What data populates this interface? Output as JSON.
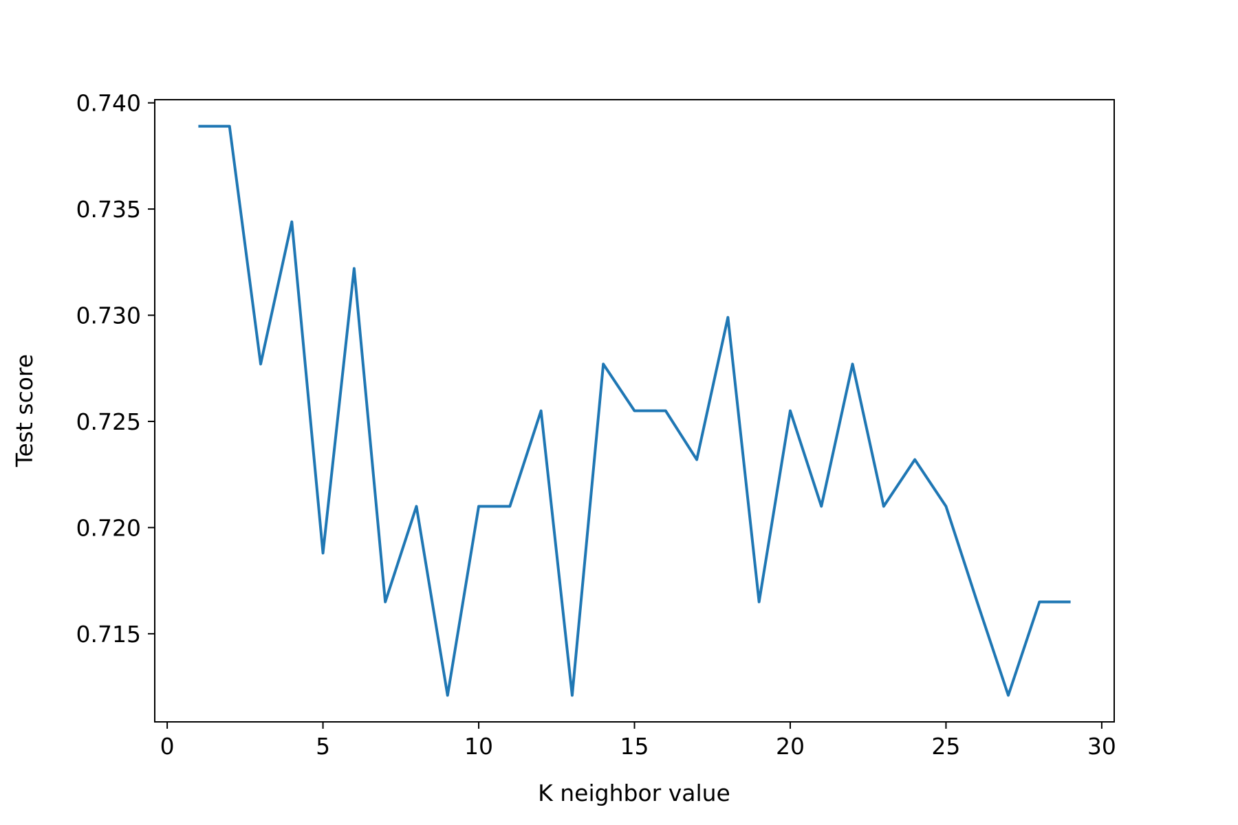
{
  "chart_data": {
    "type": "line",
    "title": "",
    "xlabel": "K neighbor value",
    "ylabel": "Test score",
    "xlim": [
      -0.4,
      30.4
    ],
    "ylim": [
      0.71085,
      0.74015
    ],
    "x_ticks": [
      0,
      5,
      10,
      15,
      20,
      25,
      30
    ],
    "x_tick_labels": [
      "0",
      "5",
      "10",
      "15",
      "20",
      "25",
      "30"
    ],
    "y_ticks": [
      0.715,
      0.72,
      0.725,
      0.73,
      0.735,
      0.74
    ],
    "y_tick_labels": [
      "0.715",
      "0.720",
      "0.725",
      "0.730",
      "0.735",
      "0.740"
    ],
    "grid": false,
    "series": [
      {
        "color": "#1f77b4",
        "x": [
          1,
          2,
          3,
          4,
          5,
          6,
          7,
          8,
          9,
          10,
          11,
          12,
          13,
          14,
          15,
          16,
          17,
          18,
          19,
          20,
          21,
          22,
          23,
          24,
          25,
          26,
          27,
          28,
          29
        ],
        "y": [
          0.7389,
          0.7389,
          0.7277,
          0.7344,
          0.7188,
          0.7322,
          0.7165,
          0.721,
          0.7121,
          0.721,
          0.721,
          0.7255,
          0.7121,
          0.7277,
          0.7255,
          0.7255,
          0.7232,
          0.7299,
          0.7165,
          0.7255,
          0.721,
          0.7277,
          0.721,
          0.7232,
          0.721,
          0.7165,
          0.7121,
          0.7165,
          0.7165
        ]
      }
    ]
  }
}
